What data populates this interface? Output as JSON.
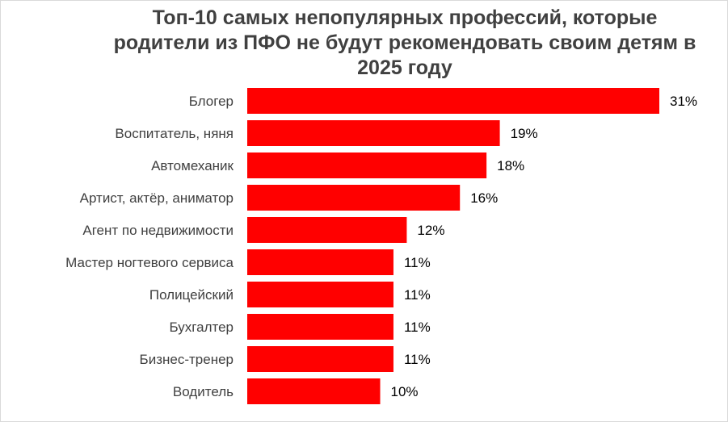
{
  "chart_data": {
    "type": "bar",
    "orientation": "horizontal",
    "title": "Топ-10 самых непопулярных профессий, которые родители из ПФО не будут рекомендовать своим детям в 2025 году",
    "categories": [
      "Блогер",
      "Воспитатель, няня",
      "Автомеханик",
      "Артист, актёр, аниматор",
      "Агент по недвижимости",
      "Мастер ногтевого сервиса",
      "Полицейский",
      "Бухгалтер",
      "Бизнес-тренер",
      "Водитель"
    ],
    "values": [
      31,
      19,
      18,
      16,
      12,
      11,
      11,
      11,
      11,
      10
    ],
    "value_labels": [
      "31%",
      "19%",
      "18%",
      "16%",
      "12%",
      "11%",
      "11%",
      "11%",
      "11%",
      "10%"
    ],
    "xlim": [
      0,
      31
    ],
    "grid": false,
    "legend": "none",
    "bar_color": "#ff0000"
  }
}
